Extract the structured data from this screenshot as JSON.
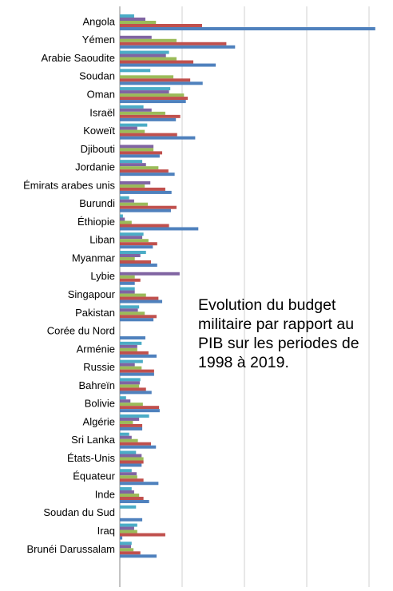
{
  "chart_data": {
    "type": "bar",
    "orientation": "horizontal",
    "categories": [
      "Angola",
      "Yémen",
      "Arabie Saoudite",
      "Soudan",
      "Oman",
      "Israël",
      "Koweït",
      "Djibouti",
      "Jordanie",
      "Émirats arabes unis",
      "Burundi",
      "Éthiopie",
      "Liban",
      "Myanmar",
      "Lybie",
      "Singapour",
      "Pakistan",
      "Corée du Nord",
      "Arménie",
      "Russie",
      "Bahreïn",
      "Bolivie",
      "Algérie",
      "Sri Lanka",
      "États-Unis",
      "Équateur",
      "Inde",
      "Soudan du Sud",
      "Iraq",
      "Brunéi Darussalam"
    ],
    "series": [
      {
        "color": "#4bacc6",
        "values": [
          0.23,
          null,
          0.79,
          0.49,
          0.81,
          0.38,
          0.44,
          null,
          0.36,
          null,
          0.15,
          0.05,
          0.38,
          0.42,
          null,
          0.24,
          0.31,
          null,
          0.35,
          0.37,
          0.33,
          0.1,
          0.47,
          0.15,
          0.26,
          0.19,
          0.19,
          0.26,
          0.28,
          0.19
        ]
      },
      {
        "color": "#8064a2",
        "values": [
          0.41,
          0.51,
          0.74,
          null,
          0.79,
          0.51,
          0.28,
          0.54,
          0.42,
          0.49,
          0.23,
          0.08,
          0.36,
          0.33,
          0.96,
          0.24,
          0.29,
          null,
          0.28,
          0.24,
          0.32,
          0.17,
          0.31,
          0.19,
          0.35,
          0.27,
          0.23,
          null,
          0.23,
          0.18
        ]
      },
      {
        "color": "#9bbb59",
        "values": [
          0.58,
          0.91,
          0.91,
          0.86,
          1.03,
          0.73,
          0.4,
          0.54,
          0.62,
          0.4,
          0.45,
          0.19,
          0.46,
          0.24,
          0.24,
          0.42,
          0.4,
          null,
          0.28,
          0.35,
          0.31,
          0.37,
          0.21,
          0.29,
          0.38,
          0.28,
          0.31,
          null,
          0.28,
          0.22
        ]
      },
      {
        "color": "#c0504d",
        "values": [
          1.32,
          1.71,
          1.18,
          1.13,
          1.09,
          0.97,
          0.92,
          0.68,
          0.78,
          0.73,
          0.91,
          0.79,
          0.6,
          0.5,
          0.33,
          0.62,
          0.59,
          null,
          0.46,
          0.55,
          0.42,
          0.63,
          0.36,
          0.5,
          0.38,
          0.38,
          0.38,
          null,
          0.73,
          0.33
        ]
      },
      {
        "color": "#4f81bd",
        "values": [
          4.1,
          1.85,
          1.54,
          1.33,
          1.06,
          0.9,
          1.21,
          0.64,
          0.88,
          0.83,
          0.82,
          1.26,
          0.53,
          0.6,
          0.24,
          0.68,
          0.54,
          0.41,
          0.59,
          0.55,
          0.51,
          0.64,
          0.36,
          0.58,
          0.35,
          0.62,
          0.47,
          0.36,
          0.04,
          0.59
        ]
      }
    ],
    "xlim": [
      0,
      4.2
    ],
    "xticks": [
      0,
      1,
      2,
      3,
      4
    ],
    "grid": true,
    "annotation": "Evolution du budget militaire par rapport au PIB sur les periodes de 1998 à 2019."
  }
}
